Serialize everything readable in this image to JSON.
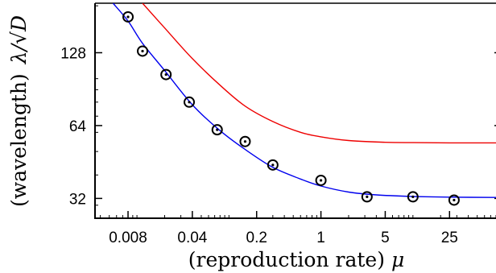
{
  "chart_data": {
    "type": "line",
    "title": "",
    "xlabel": "(reproduction rate)",
    "xlabel_symbol": "μ",
    "ylabel": "(wavelength)",
    "ylabel_symbol": "λ/√D",
    "x_scale": "log",
    "y_scale": "log",
    "xlim": [
      0.0035,
      80
    ],
    "ylim": [
      26.5,
      205
    ],
    "grid": false,
    "legend": "none",
    "x_ticks": [
      {
        "value": 0.008,
        "label": "0.008"
      },
      {
        "value": 0.04,
        "label": "0.04"
      },
      {
        "value": 0.2,
        "label": "0.2"
      },
      {
        "value": 1,
        "label": "1"
      },
      {
        "value": 5,
        "label": "5"
      },
      {
        "value": 25,
        "label": "25"
      }
    ],
    "y_ticks": [
      {
        "value": 32,
        "label": "32"
      },
      {
        "value": 64,
        "label": "64"
      },
      {
        "value": 128,
        "label": "128"
      }
    ],
    "series": [
      {
        "kind": "scatter",
        "marker": "circled-dot",
        "color": "#000000",
        "points": [
          {
            "x": 0.008,
            "y": 180
          },
          {
            "x": 0.0115,
            "y": 130
          },
          {
            "x": 0.0207,
            "y": 104
          },
          {
            "x": 0.037,
            "y": 80
          },
          {
            "x": 0.0745,
            "y": 61.5
          },
          {
            "x": 0.15,
            "y": 55
          },
          {
            "x": 0.3,
            "y": 44
          },
          {
            "x": 1.0,
            "y": 38
          },
          {
            "x": 3.17,
            "y": 32.5
          },
          {
            "x": 10,
            "y": 32.5
          },
          {
            "x": 28,
            "y": 31.5
          }
        ]
      },
      {
        "kind": "line",
        "color": "#0000ee",
        "points": [
          {
            "x": 0.0055,
            "y": 205
          },
          {
            "x": 0.008,
            "y": 173
          },
          {
            "x": 0.0115,
            "y": 140
          },
          {
            "x": 0.02,
            "y": 108
          },
          {
            "x": 0.04,
            "y": 78
          },
          {
            "x": 0.08,
            "y": 61
          },
          {
            "x": 0.15,
            "y": 51
          },
          {
            "x": 0.3,
            "y": 43
          },
          {
            "x": 0.6,
            "y": 38.5
          },
          {
            "x": 1,
            "y": 36
          },
          {
            "x": 2,
            "y": 34
          },
          {
            "x": 4,
            "y": 33.1
          },
          {
            "x": 10,
            "y": 32.6
          },
          {
            "x": 25,
            "y": 32.4
          },
          {
            "x": 80,
            "y": 32.3
          }
        ]
      },
      {
        "kind": "line",
        "color": "#ee0000",
        "points": [
          {
            "x": 0.0115,
            "y": 205
          },
          {
            "x": 0.02,
            "y": 162
          },
          {
            "x": 0.04,
            "y": 121
          },
          {
            "x": 0.08,
            "y": 94
          },
          {
            "x": 0.15,
            "y": 77
          },
          {
            "x": 0.3,
            "y": 66.5
          },
          {
            "x": 0.6,
            "y": 60
          },
          {
            "x": 1,
            "y": 57.5
          },
          {
            "x": 2,
            "y": 55.5
          },
          {
            "x": 5,
            "y": 54.6
          },
          {
            "x": 10,
            "y": 54.4
          },
          {
            "x": 25,
            "y": 54.3
          },
          {
            "x": 80,
            "y": 54.3
          }
        ]
      }
    ]
  }
}
